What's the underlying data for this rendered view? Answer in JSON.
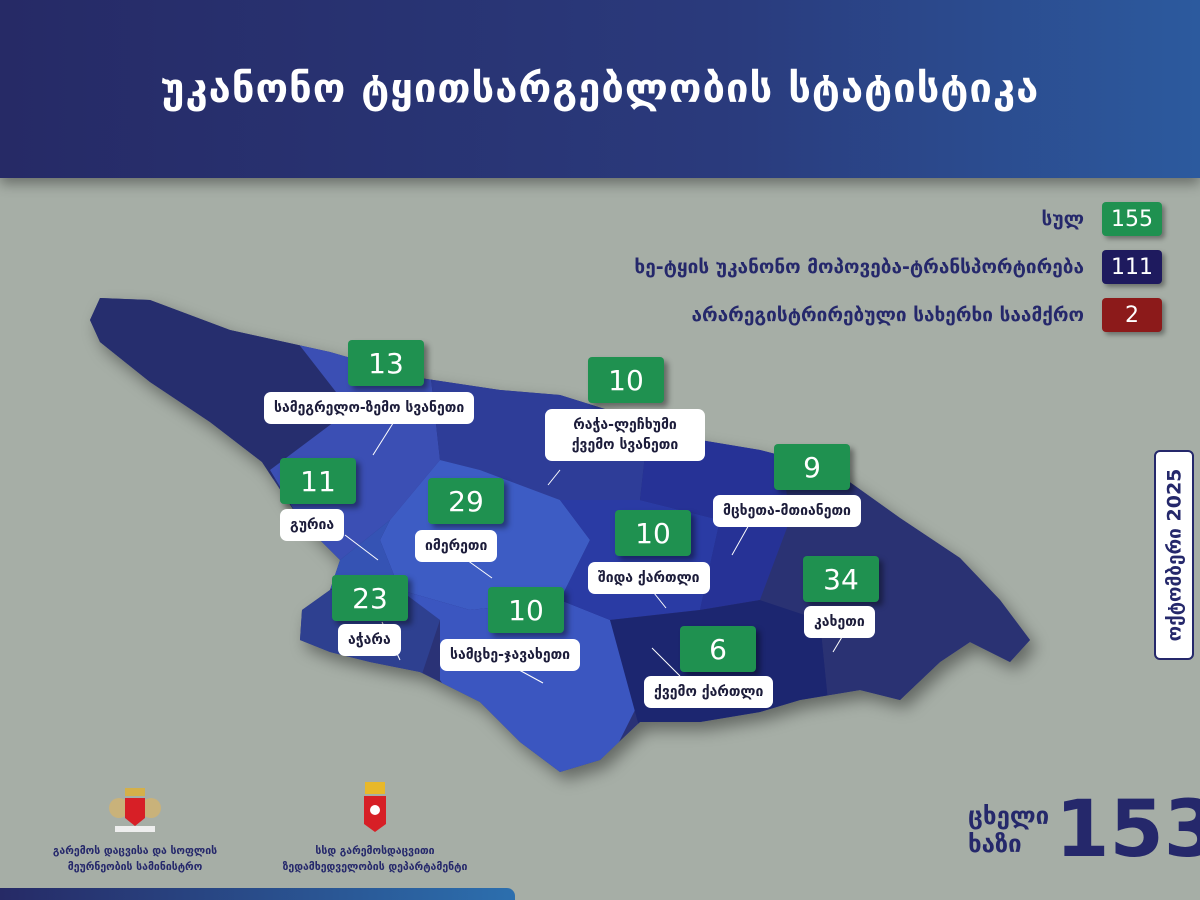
{
  "header": {
    "title": "უკანონო ტყითსარგებლობის სტატისტიკა"
  },
  "legend": [
    {
      "label": "სულ",
      "value": "155",
      "color": "#1f9150"
    },
    {
      "label": "ხე-ტყის უკანონო მოპოვება-ტრანსპორტირება",
      "value": "111",
      "color": "#1e1a5e"
    },
    {
      "label": "არარეგისტრირებული სახერხი საამქრო",
      "value": "2",
      "color": "#8c1a1a"
    }
  ],
  "regions": [
    {
      "name": "სამეგრელო-ზემო სვანეთი",
      "value": "13"
    },
    {
      "name": "რაჭა-ლეჩხუმი ქვემო სვანეთი",
      "value": "10"
    },
    {
      "name": "გურია",
      "value": "11"
    },
    {
      "name": "იმერეთი",
      "value": "29"
    },
    {
      "name": "მცხეთა-მთიანეთი",
      "value": "9"
    },
    {
      "name": "შიდა ქართლი",
      "value": "10"
    },
    {
      "name": "აჭარა",
      "value": "23"
    },
    {
      "name": "სამცხე-ჯავახეთი",
      "value": "10"
    },
    {
      "name": "კახეთი",
      "value": "34"
    },
    {
      "name": "ქვემო ქართლი",
      "value": "6"
    }
  ],
  "date": "ოქტომბერი 2025",
  "hotline": {
    "line1": "ცხელი",
    "line2": "ხაზი",
    "number": "153"
  },
  "orgs": [
    {
      "line1": "გარემოს დაცვისა და სოფლის",
      "line2": "მეურნეობის სამინისტრო"
    },
    {
      "line1": "სსდ გარემოსდაცვითი",
      "line2": "ზედამხედველობის დეპარტამენტი"
    }
  ]
}
